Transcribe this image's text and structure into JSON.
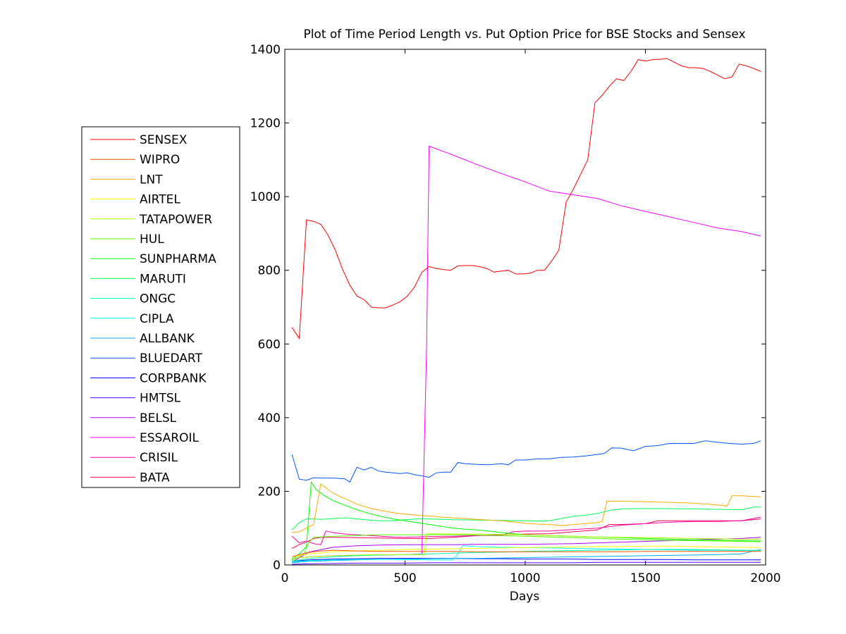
{
  "chart_data": {
    "type": "line",
    "title": "Plot of Time Period Length vs. Put Option Price for BSE Stocks and Sensex",
    "xlabel": "Days",
    "ylabel": "",
    "xlim": [
      0,
      2000
    ],
    "ylim": [
      0,
      1400
    ],
    "xticks": [
      0,
      500,
      1000,
      1500,
      2000
    ],
    "yticks": [
      0,
      200,
      400,
      600,
      800,
      1000,
      1200,
      1400
    ],
    "grid": false,
    "legend_position": "outside-left",
    "series": [
      {
        "name": "SENSEX",
        "color": "#ff0000",
        "x": [
          30,
          60,
          90,
          120,
          150,
          180,
          210,
          240,
          270,
          300,
          330,
          360,
          390,
          420,
          450,
          480,
          510,
          540,
          570,
          600,
          630,
          660,
          690,
          720,
          750,
          780,
          810,
          840,
          870,
          900,
          930,
          960,
          990,
          1020,
          1050,
          1080,
          1110,
          1140,
          1170,
          1200,
          1230,
          1260,
          1290,
          1320,
          1350,
          1380,
          1410,
          1440,
          1470,
          1500,
          1530,
          1560,
          1590,
          1620,
          1650,
          1680,
          1710,
          1740,
          1770,
          1800,
          1830,
          1860,
          1890,
          1920,
          1950,
          1980
        ],
        "y": [
          645,
          615,
          937,
          933,
          925,
          895,
          855,
          803,
          760,
          730,
          720,
          700,
          698,
          698,
          706,
          715,
          730,
          755,
          795,
          810,
          805,
          802,
          800,
          812,
          813,
          813,
          810,
          805,
          795,
          798,
          800,
          790,
          790,
          792,
          800,
          800,
          825,
          855,
          985,
          1020,
          1060,
          1100,
          1255,
          1275,
          1300,
          1320,
          1315,
          1340,
          1372,
          1368,
          1372,
          1373,
          1375,
          1365,
          1355,
          1350,
          1350,
          1348,
          1340,
          1330,
          1320,
          1325,
          1360,
          1355,
          1348,
          1340
        ]
      },
      {
        "name": "WIPRO",
        "color": "#ff5500",
        "x": [
          30,
          60,
          90,
          120,
          150,
          200,
          300,
          400,
          500,
          600,
          700,
          800,
          900,
          1000,
          1100,
          1200,
          1300,
          1400,
          1500,
          1600,
          1700,
          1800,
          1900,
          1980
        ],
        "y": [
          22,
          28,
          33,
          36,
          38,
          40,
          38,
          37,
          37,
          37,
          37,
          36,
          36,
          36,
          36,
          36,
          36,
          36,
          37,
          37,
          37,
          37,
          37,
          37
        ]
      },
      {
        "name": "LNT",
        "color": "#ffaa00",
        "x": [
          30,
          60,
          90,
          120,
          150,
          200,
          250,
          300,
          350,
          400,
          450,
          500,
          550,
          600,
          650,
          700,
          750,
          800,
          850,
          900,
          950,
          1000,
          1050,
          1100,
          1150,
          1200,
          1250,
          1300,
          1320,
          1340,
          1400,
          1500,
          1600,
          1700,
          1800,
          1840,
          1860,
          1900,
          1980
        ],
        "y": [
          88,
          90,
          100,
          110,
          220,
          195,
          180,
          165,
          155,
          148,
          142,
          138,
          135,
          133,
          130,
          128,
          126,
          124,
          122,
          120,
          117,
          113,
          111,
          110,
          107,
          110,
          112,
          115,
          118,
          173,
          173,
          172,
          170,
          168,
          163,
          160,
          188,
          188,
          185
        ]
      },
      {
        "name": "AIRTEL",
        "color": "#ffff00",
        "x": [
          30,
          100,
          200,
          300,
          400,
          500,
          600,
          700,
          800,
          900,
          1000,
          1100,
          1200,
          1300,
          1400,
          1500,
          1600,
          1700,
          1800,
          1900,
          1980
        ],
        "y": [
          22,
          30,
          36,
          38,
          40,
          42,
          43,
          44,
          45,
          46,
          47,
          48,
          49,
          50,
          50,
          51,
          51,
          50,
          49,
          48,
          47
        ]
      },
      {
        "name": "TATAPOWER",
        "color": "#aaff00",
        "x": [
          30,
          100,
          200,
          300,
          400,
          500,
          580,
          590,
          700,
          800,
          900,
          1000,
          1100,
          1200,
          1300,
          1400,
          1500,
          1600,
          1700,
          1800,
          1900,
          1980
        ],
        "y": [
          18,
          22,
          25,
          27,
          28,
          28,
          28,
          85,
          84,
          84,
          83,
          82,
          80,
          78,
          76,
          75,
          74,
          73,
          72,
          71,
          70,
          70
        ]
      },
      {
        "name": "HUL",
        "color": "#55ff00",
        "x": [
          30,
          80,
          100,
          120,
          200,
          300,
          400,
          500,
          600,
          700,
          800,
          900,
          1000,
          1100,
          1200,
          1300,
          1400,
          1500,
          1600,
          1700,
          1800,
          1900,
          1980
        ],
        "y": [
          12,
          30,
          60,
          75,
          78,
          80,
          82,
          82,
          82,
          82,
          81,
          80,
          78,
          76,
          74,
          72,
          70,
          68,
          67,
          66,
          65,
          64,
          63
        ]
      },
      {
        "name": "SUNPHARMA",
        "color": "#00ff00",
        "x": [
          30,
          60,
          90,
          110,
          130,
          160,
          200,
          250,
          300,
          350,
          400,
          450,
          500,
          550,
          600,
          650,
          700,
          750,
          800,
          850,
          900,
          950,
          1000,
          1100,
          1200,
          1300,
          1400,
          1500,
          1600,
          1700,
          1800,
          1900,
          1980
        ],
        "y": [
          15,
          30,
          50,
          225,
          205,
          190,
          175,
          162,
          150,
          140,
          132,
          125,
          120,
          115,
          110,
          105,
          100,
          97,
          95,
          92,
          88,
          85,
          82,
          80,
          78,
          76,
          74,
          72,
          70,
          68,
          67,
          66,
          65
        ]
      },
      {
        "name": "MARUTI",
        "color": "#00ff55",
        "x": [
          30,
          60,
          90,
          120,
          150,
          200,
          250,
          300,
          350,
          400,
          450,
          500,
          550,
          600,
          700,
          800,
          900,
          1000,
          1050,
          1100,
          1150,
          1200,
          1250,
          1300,
          1350,
          1400,
          1450,
          1500,
          1600,
          1700,
          1800,
          1900,
          1950,
          1980
        ],
        "y": [
          95,
          115,
          125,
          125,
          124,
          126,
          128,
          125,
          122,
          120,
          120,
          123,
          125,
          125,
          123,
          122,
          121,
          120,
          119,
          120,
          126,
          132,
          135,
          140,
          148,
          152,
          153,
          153,
          153,
          152,
          151,
          150,
          157,
          157
        ]
      },
      {
        "name": "ONGC",
        "color": "#00ffaa",
        "x": [
          30,
          100,
          200,
          300,
          400,
          500,
          600,
          700,
          800,
          900,
          1000,
          1100,
          1200,
          1300,
          1400,
          1500,
          1600,
          1700,
          1800,
          1900,
          1980
        ],
        "y": [
          10,
          18,
          22,
          25,
          27,
          28,
          30,
          32,
          34,
          35,
          37,
          38,
          39,
          40,
          41,
          42,
          42,
          42,
          41,
          40,
          40
        ]
      },
      {
        "name": "CIPLA",
        "color": "#00ffff",
        "x": [
          30,
          100,
          200,
          300,
          400,
          500,
          600,
          700,
          720,
          740,
          800,
          900,
          1000,
          1100,
          1200,
          1300,
          1400,
          1500,
          1600,
          1700,
          1800,
          1900,
          1980
        ],
        "y": [
          8,
          12,
          14,
          15,
          15,
          15,
          14,
          14,
          30,
          52,
          50,
          48,
          47,
          46,
          45,
          44,
          43,
          42,
          41,
          40,
          40,
          39,
          39
        ]
      },
      {
        "name": "ALLBANK",
        "color": "#00aaff",
        "x": [
          30,
          100,
          200,
          300,
          400,
          500,
          600,
          700,
          800,
          900,
          1000,
          1100,
          1200,
          1300,
          1400,
          1500,
          1600,
          1700,
          1800,
          1900,
          1980
        ],
        "y": [
          6,
          10,
          12,
          14,
          15,
          16,
          17,
          18,
          18,
          19,
          20,
          21,
          22,
          23,
          24,
          25,
          26,
          27,
          28,
          30,
          42
        ]
      },
      {
        "name": "BLUEDART",
        "color": "#0055ff",
        "x": [
          30,
          60,
          90,
          120,
          150,
          200,
          250,
          270,
          300,
          330,
          360,
          390,
          420,
          450,
          480,
          510,
          540,
          570,
          600,
          630,
          660,
          690,
          720,
          750,
          800,
          850,
          900,
          930,
          960,
          1000,
          1050,
          1100,
          1150,
          1200,
          1250,
          1300,
          1330,
          1360,
          1400,
          1450,
          1500,
          1550,
          1600,
          1650,
          1700,
          1750,
          1800,
          1850,
          1900,
          1950,
          1980
        ],
        "y": [
          300,
          233,
          230,
          237,
          236,
          236,
          234,
          225,
          265,
          258,
          265,
          255,
          252,
          250,
          248,
          250,
          245,
          242,
          238,
          250,
          252,
          252,
          278,
          275,
          273,
          272,
          275,
          272,
          285,
          285,
          288,
          288,
          292,
          293,
          296,
          300,
          303,
          318,
          317,
          310,
          322,
          324,
          330,
          330,
          330,
          337,
          333,
          330,
          328,
          330,
          337
        ]
      },
      {
        "name": "CORPBANK",
        "color": "#0000ff",
        "x": [
          30,
          100,
          200,
          300,
          400,
          500,
          600,
          700,
          800,
          900,
          1000,
          1100,
          1200,
          1300,
          1400,
          1500,
          1600,
          1700,
          1800,
          1900,
          1980
        ],
        "y": [
          10,
          14,
          16,
          17,
          18,
          18,
          18,
          18,
          17,
          17,
          16,
          16,
          16,
          15,
          15,
          15,
          15,
          14,
          14,
          14,
          14
        ]
      },
      {
        "name": "HMTSL",
        "color": "#5500ff",
        "x": [
          30,
          100,
          200,
          300,
          400,
          500,
          600,
          700,
          800,
          900,
          1000,
          1100,
          1200,
          1300,
          1400,
          1500,
          1600,
          1700,
          1800,
          1900,
          1980
        ],
        "y": [
          2,
          3,
          4,
          5,
          5,
          5,
          6,
          6,
          6,
          6,
          6,
          6,
          6,
          7,
          7,
          7,
          7,
          7,
          7,
          7,
          7
        ]
      },
      {
        "name": "BELSL",
        "color": "#aa00ff",
        "x": [
          30,
          100,
          200,
          300,
          400,
          500,
          600,
          700,
          800,
          900,
          1000,
          1100,
          1200,
          1300,
          1400,
          1500,
          1600,
          1700,
          1800,
          1900,
          1980
        ],
        "y": [
          8,
          35,
          48,
          52,
          54,
          55,
          55,
          55,
          56,
          56,
          56,
          57,
          58,
          60,
          62,
          64,
          66,
          68,
          70,
          72,
          75
        ]
      },
      {
        "name": "ESSAROIL",
        "color": "#ff00ff",
        "x": [
          30,
          100,
          200,
          300,
          400,
          500,
          570,
          590,
          600,
          700,
          800,
          900,
          1000,
          1100,
          1200,
          1300,
          1400,
          1500,
          1600,
          1700,
          1800,
          1900,
          1980
        ],
        "y": [
          18,
          22,
          25,
          26,
          27,
          28,
          30,
          600,
          1137,
          1113,
          1087,
          1063,
          1040,
          1015,
          1005,
          995,
          975,
          960,
          945,
          930,
          915,
          905,
          893
        ]
      },
      {
        "name": "CRISIL",
        "color": "#ff00aa",
        "x": [
          30,
          60,
          90,
          120,
          150,
          170,
          200,
          250,
          300,
          350,
          400,
          450,
          500,
          550,
          600,
          700,
          800,
          900,
          950,
          1000,
          1100,
          1200,
          1300,
          1400,
          1500,
          1600,
          1700,
          1800,
          1900,
          1980
        ],
        "y": [
          78,
          60,
          65,
          58,
          55,
          92,
          88,
          84,
          82,
          80,
          78,
          76,
          75,
          76,
          77,
          78,
          80,
          80,
          90,
          92,
          92,
          96,
          100,
          108,
          112,
          116,
          118,
          118,
          120,
          130
        ]
      },
      {
        "name": "BATA",
        "color": "#ff0055",
        "x": [
          30,
          60,
          90,
          120,
          150,
          200,
          300,
          400,
          500,
          600,
          700,
          800,
          900,
          1000,
          1100,
          1200,
          1300,
          1350,
          1400,
          1500,
          1550,
          1600,
          1700,
          1800,
          1900,
          1980
        ],
        "y": [
          45,
          55,
          62,
          72,
          75,
          75,
          74,
          73,
          72,
          72,
          75,
          80,
          82,
          84,
          85,
          90,
          95,
          110,
          110,
          112,
          120,
          120,
          120,
          120,
          120,
          125
        ]
      }
    ]
  }
}
